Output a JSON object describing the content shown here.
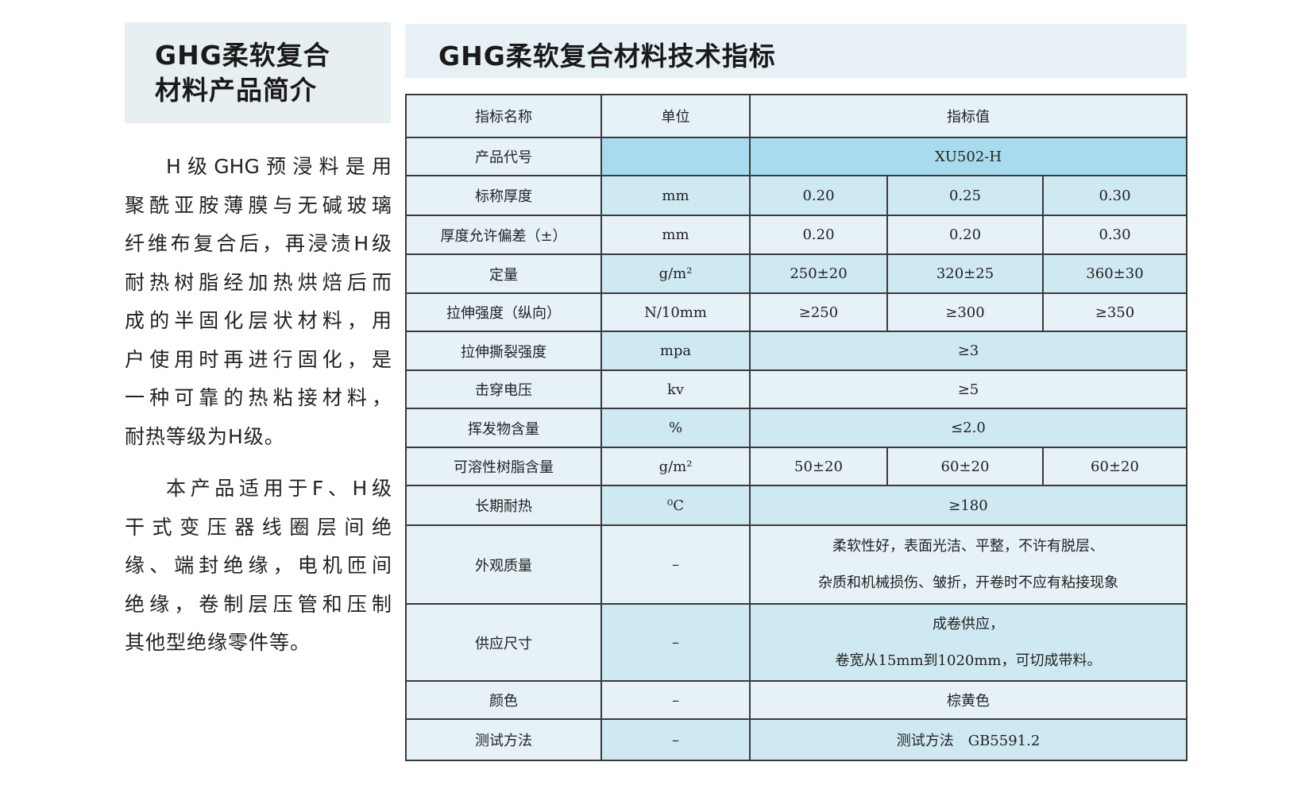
{
  "intro": {
    "title_line1": "GHG柔软复合",
    "title_line2": "材料产品简介",
    "paragraph1_lines": [
      "H级GHG预浸料是用",
      "聚酰亚胺薄膜与无碱玻璃",
      "纤维布复合后，再浸渍H级",
      "耐热树脂经加热烘焙后而",
      "成的半固化层状材料，用",
      "户使用时再进行固化，是",
      "一种可靠的热粘接材料，",
      "耐热等级为H级。"
    ],
    "paragraph2_lines": [
      "本产品适用于F、H级",
      "干式变压器线圈层间绝",
      "缘、端封绝缘，电机匝间",
      "绝缘，卷制层压管和压制",
      "其他型绝缘零件等。"
    ]
  },
  "spec": {
    "title": "GHG柔软复合材料技术指标",
    "headers": {
      "name": "指标名称",
      "unit": "单位",
      "value": "指标值"
    },
    "product_code": {
      "name": "产品代号",
      "unit": "",
      "value": "XU502-H"
    },
    "rows3": [
      {
        "name": "标称厚度",
        "unit": "mm",
        "values": [
          "0.20",
          "0.25",
          "0.30"
        ]
      },
      {
        "name": "厚度允许偏差（±）",
        "unit": "mm",
        "values": [
          "0.20",
          "0.20",
          "0.30"
        ]
      },
      {
        "name": "定量",
        "unit": "g/m²",
        "values": [
          "250±20",
          "320±25",
          "360±30"
        ]
      },
      {
        "name": "拉伸强度（纵向）",
        "unit": "N/10mm",
        "values": [
          "≥250",
          "≥300",
          "≥350"
        ]
      }
    ],
    "rows1a": [
      {
        "name": "拉伸撕裂强度",
        "unit": "mpa",
        "value": "≥3"
      },
      {
        "name": "击穿电压",
        "unit": "kv",
        "value": "≥5"
      },
      {
        "name": "挥发物含量",
        "unit": "%",
        "value": "≤2.0"
      }
    ],
    "resin": {
      "name": "可溶性树脂含量",
      "unit": "g/m²",
      "values": [
        "50±20",
        "60±20",
        "60±20"
      ]
    },
    "heat": {
      "name": "长期耐热",
      "unit": "⁰C",
      "value": "≥180"
    },
    "appearance": {
      "name": "外观质量",
      "unit": "–",
      "line1": "柔软性好，表面光洁、平整，不许有脱层、",
      "line2": "杂质和机械损伤、皱折，开卷时不应有粘接现象"
    },
    "supply": {
      "name": "供应尺寸",
      "unit": "–",
      "line1": "成卷供应，",
      "line2": "卷宽从15mm到1020mm，可切成带料。"
    },
    "color": {
      "name": "颜色",
      "unit": "–",
      "value": "棕黄色"
    },
    "test": {
      "name": "测试方法",
      "unit": "–",
      "value": "测试方法　GB5591.2"
    }
  }
}
